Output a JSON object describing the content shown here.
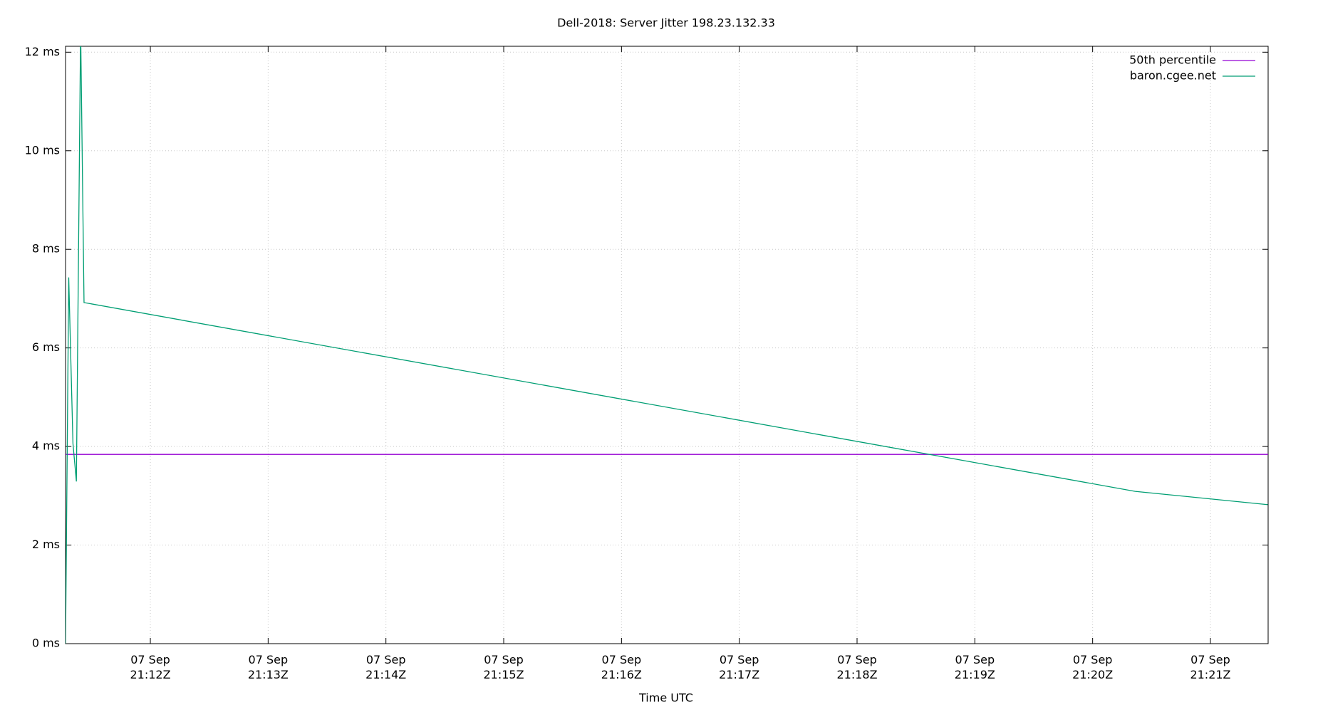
{
  "chart_data": {
    "type": "line",
    "title": "Dell-2018: Server Jitter 198.23.132.33",
    "x_label": "Time UTC",
    "series": [
      {
        "name": "50th percentile",
        "color": "#9400d3",
        "x": [
          11.28,
          21.49
        ],
        "values": [
          3.84,
          3.84
        ]
      },
      {
        "name": "baron.cgee.net",
        "color": "#009e73",
        "x": [
          11.28,
          11.307,
          11.343,
          11.372,
          11.408,
          11.437,
          20.361,
          21.487
        ],
        "values": [
          0,
          7.43,
          4.06,
          3.29,
          12.5,
          6.92,
          3.09,
          2.82
        ]
      }
    ],
    "xlim": [
      11.28,
      21.49
    ],
    "ylim": [
      0,
      12.12
    ],
    "xticks": [
      {
        "value": 12,
        "label": "07 Sep\n21:12Z"
      },
      {
        "value": 13,
        "label": "07 Sep\n21:13Z"
      },
      {
        "value": 14,
        "label": "07 Sep\n21:14Z"
      },
      {
        "value": 15,
        "label": "07 Sep\n21:15Z"
      },
      {
        "value": 16,
        "label": "07 Sep\n21:16Z"
      },
      {
        "value": 17,
        "label": "07 Sep\n21:17Z"
      },
      {
        "value": 18,
        "label": "07 Sep\n21:18Z"
      },
      {
        "value": 19,
        "label": "07 Sep\n21:19Z"
      },
      {
        "value": 20,
        "label": "07 Sep\n21:20Z"
      },
      {
        "value": 21,
        "label": "07 Sep\n21:21Z"
      }
    ],
    "yticks": [
      {
        "value": 0,
        "label": "0 ms"
      },
      {
        "value": 2,
        "label": "2 ms"
      },
      {
        "value": 4,
        "label": "4 ms"
      },
      {
        "value": 6,
        "label": "6 ms"
      },
      {
        "value": 8,
        "label": "8 ms"
      },
      {
        "value": 10,
        "label": "10 ms"
      },
      {
        "value": 12,
        "label": "12 ms"
      }
    ],
    "grid": true,
    "legend": "top-right"
  }
}
